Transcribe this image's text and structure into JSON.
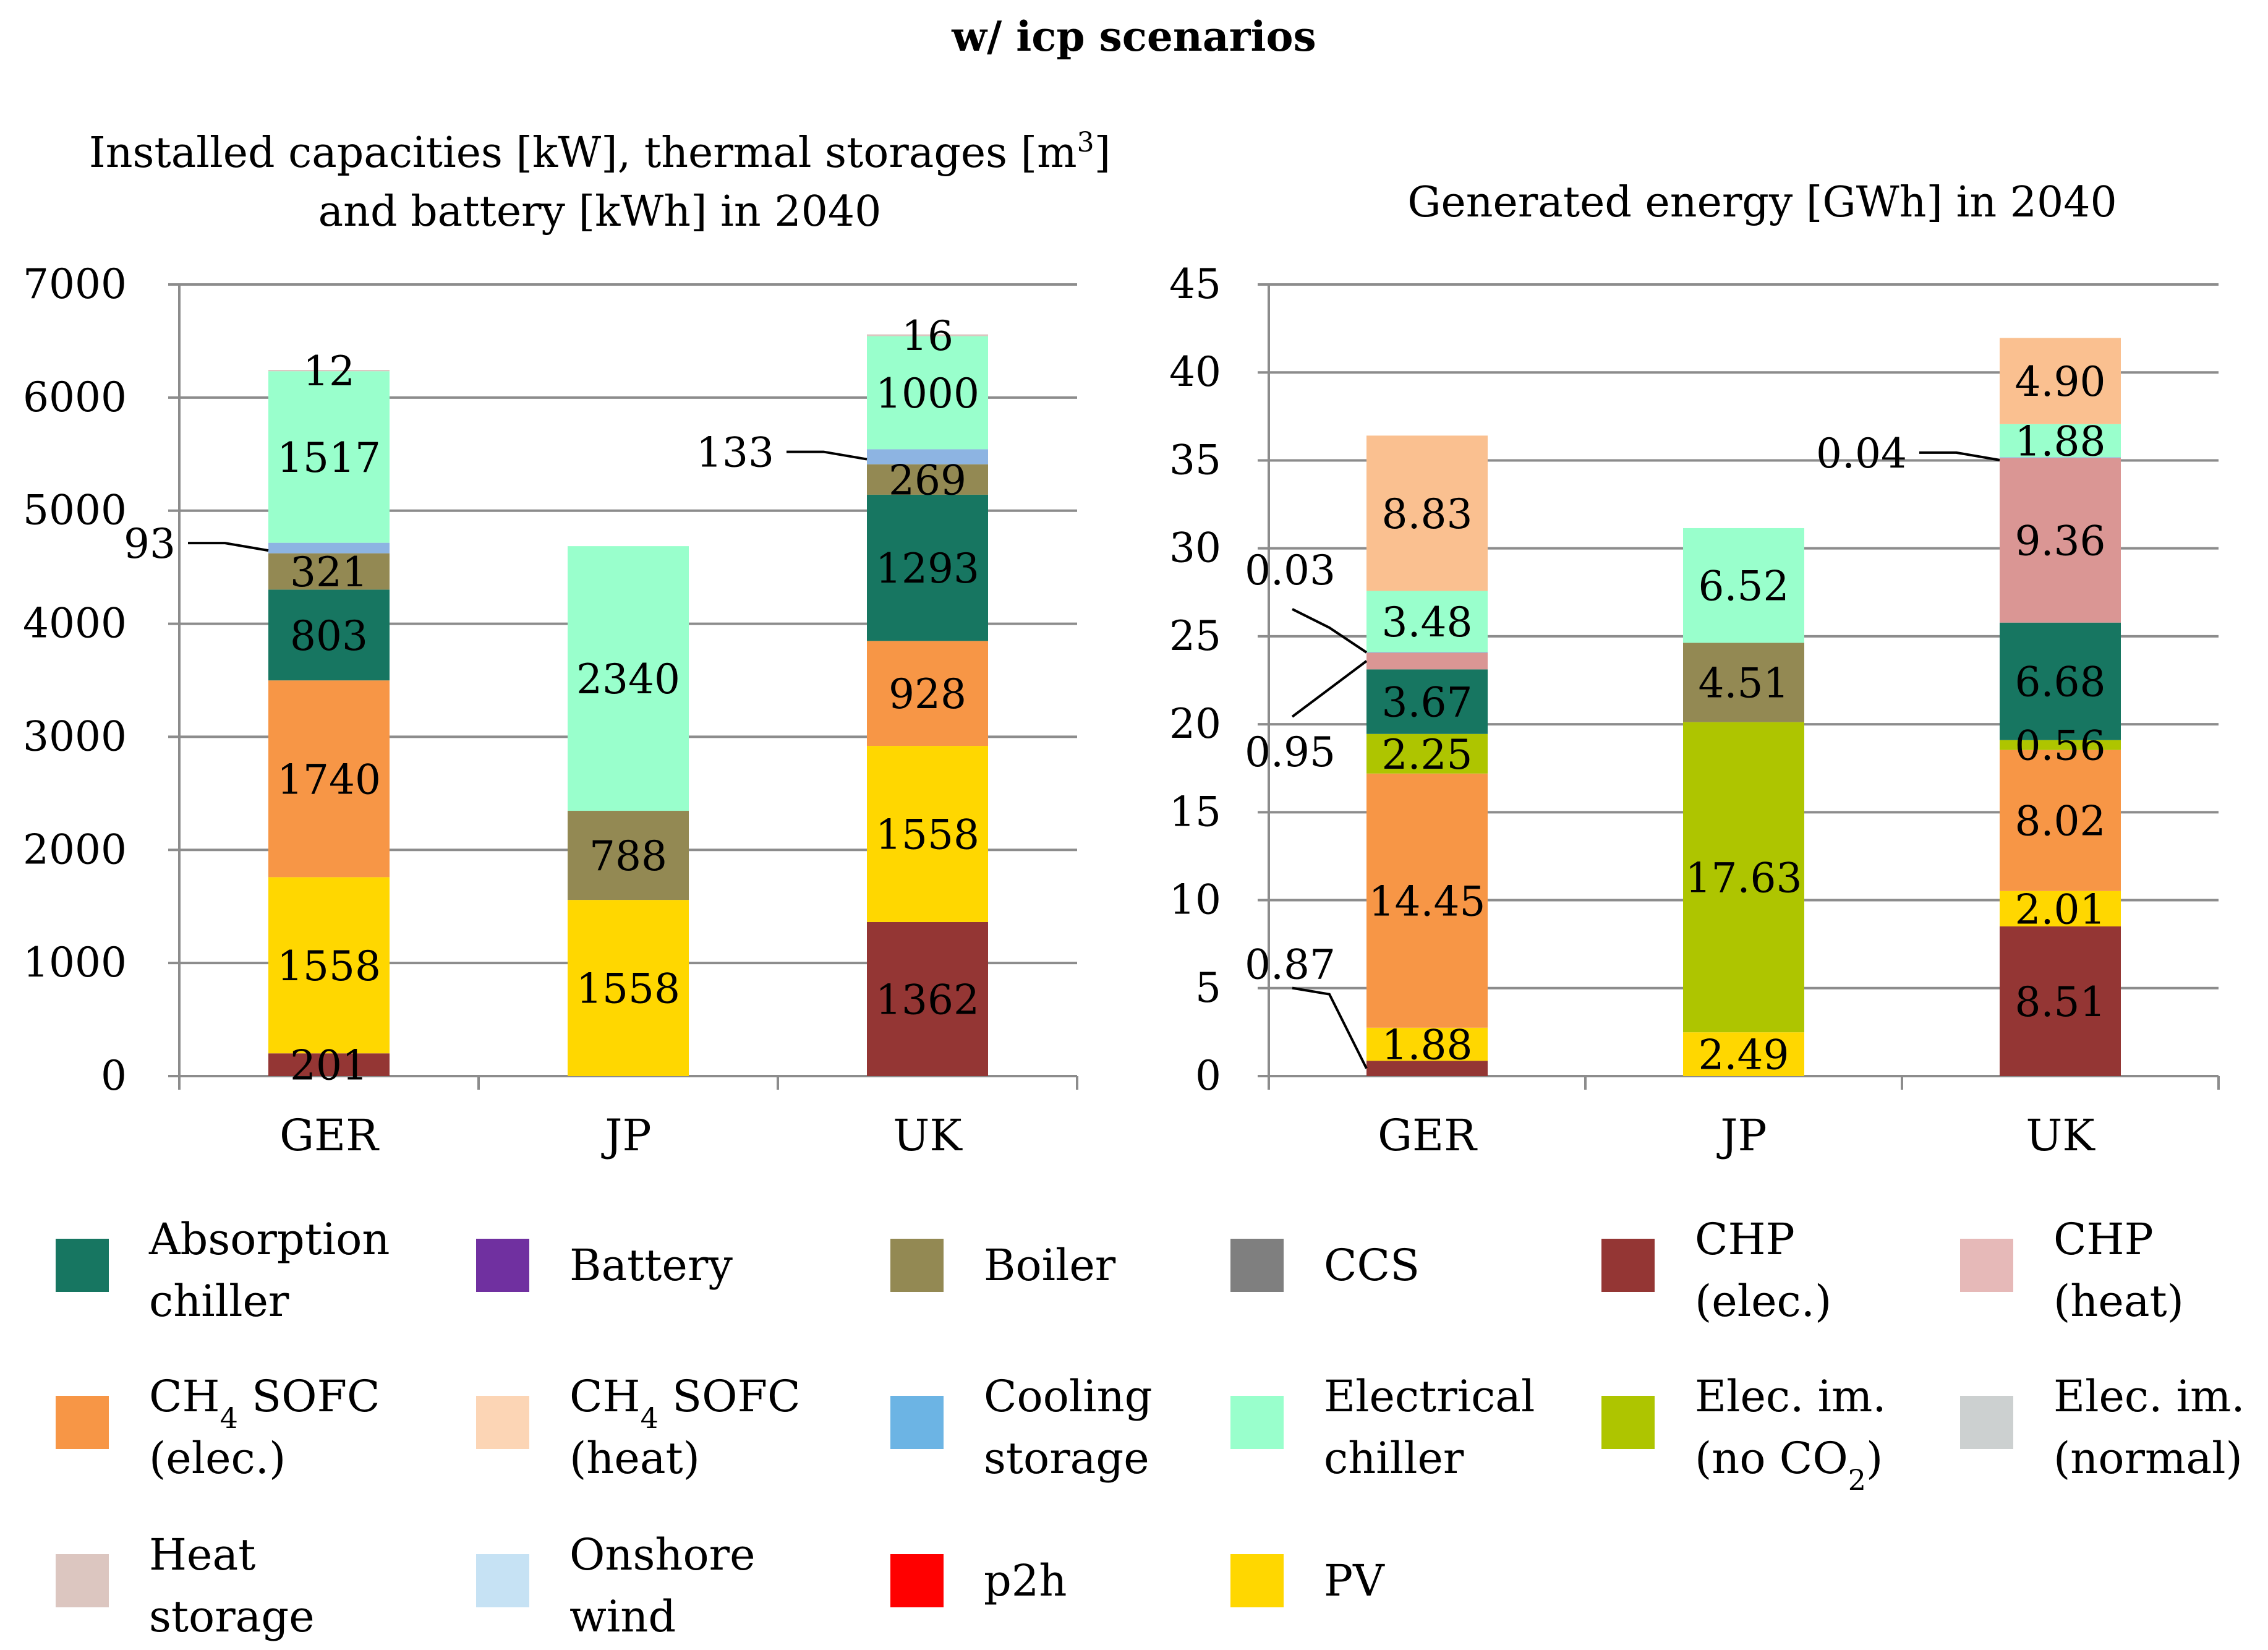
{
  "main_title": "w/ icp scenarios",
  "chart_data": [
    {
      "type": "bar",
      "stacked": true,
      "title_line1_pre": "Installed capacities [kW], thermal storages [m",
      "title_line1_sup": "3",
      "title_line1_post": "]",
      "title_line2": "and battery [kWh] in 2040",
      "categories": [
        "GER",
        "JP",
        "UK"
      ],
      "ylim": [
        0,
        7000
      ],
      "yticks": [
        0,
        1000,
        2000,
        3000,
        4000,
        5000,
        6000,
        7000
      ],
      "grid": true,
      "series": [
        {
          "name": "CHP (elec.)",
          "color": "#943634",
          "values": [
            201,
            0,
            1362
          ]
        },
        {
          "name": "PV",
          "color": "#FFD700",
          "values": [
            1558,
            1558,
            1558
          ]
        },
        {
          "name": "CH4 SOFC (elec.)",
          "color": "#F79646",
          "values": [
            1740,
            0,
            928
          ]
        },
        {
          "name": "Absorption chiller",
          "color": "#177661",
          "values": [
            803,
            0,
            1293
          ]
        },
        {
          "name": "Boiler",
          "color": "#938953",
          "values": [
            321,
            788,
            269
          ]
        },
        {
          "name": "Cooling storage",
          "color": "#8DB4E2",
          "values": [
            93,
            0,
            133
          ]
        },
        {
          "name": "Electrical chiller",
          "color": "#99FFCC",
          "values": [
            1517,
            2340,
            1000
          ]
        },
        {
          "name": "Heat storage",
          "color": "#DCC6C0",
          "values": [
            12,
            0,
            16
          ]
        }
      ],
      "labels": [
        {
          "text": "201",
          "cat": 0,
          "value": 201,
          "series": 0
        },
        {
          "text": "1558",
          "cat": 0,
          "value": 1558,
          "series": 1
        },
        {
          "text": "1740",
          "cat": 0,
          "value": 1740,
          "series": 2
        },
        {
          "text": "803",
          "cat": 0,
          "value": 803,
          "series": 3
        },
        {
          "text": "321",
          "cat": 0,
          "value": 321,
          "series": 4
        },
        {
          "text": "93",
          "cat": 0,
          "value": 93,
          "series": 5,
          "callout": "left"
        },
        {
          "text": "1517",
          "cat": 0,
          "value": 1517,
          "series": 6
        },
        {
          "text": "12",
          "cat": 0,
          "value": 12,
          "series": 7
        },
        {
          "text": "1558",
          "cat": 1,
          "value": 1558,
          "series": 1
        },
        {
          "text": "788",
          "cat": 1,
          "value": 788,
          "series": 4
        },
        {
          "text": "2340",
          "cat": 1,
          "value": 2340,
          "series": 6
        },
        {
          "text": "1362",
          "cat": 2,
          "value": 1362,
          "series": 0
        },
        {
          "text": "1558",
          "cat": 2,
          "value": 1558,
          "series": 1
        },
        {
          "text": "928",
          "cat": 2,
          "value": 928,
          "series": 2
        },
        {
          "text": "1293",
          "cat": 2,
          "value": 1293,
          "series": 3
        },
        {
          "text": "269",
          "cat": 2,
          "value": 269,
          "series": 4
        },
        {
          "text": "133",
          "cat": 2,
          "value": 133,
          "series": 5,
          "callout": "left"
        },
        {
          "text": "1000",
          "cat": 2,
          "value": 1000,
          "series": 6
        },
        {
          "text": "16",
          "cat": 2,
          "value": 16,
          "series": 7
        }
      ]
    },
    {
      "type": "bar",
      "stacked": true,
      "title": "Generated energy [GWh] in 2040",
      "categories": [
        "GER",
        "JP",
        "UK"
      ],
      "ylim": [
        0,
        45
      ],
      "yticks": [
        0,
        5,
        10,
        15,
        20,
        25,
        30,
        35,
        40,
        45
      ],
      "grid": true,
      "series": [
        {
          "name": "CHP (elec.)",
          "color": "#943634",
          "values": [
            0.87,
            0,
            8.51
          ]
        },
        {
          "name": "PV",
          "color": "#FFD700",
          "values": [
            1.88,
            2.49,
            2.01
          ]
        },
        {
          "name": "CH4 SOFC (elec.)",
          "color": "#F79646",
          "values": [
            14.45,
            0,
            8.02
          ]
        },
        {
          "name": "Elec. im. (no CO2)",
          "color": "#AEC500",
          "values": [
            2.25,
            17.63,
            0.56
          ]
        },
        {
          "name": "Absorption chiller",
          "color": "#177661",
          "values": [
            3.67,
            0,
            6.68
          ]
        },
        {
          "name": "Boiler",
          "color": "#938953",
          "values": [
            0,
            4.51,
            0
          ]
        },
        {
          "name": "CHP (heat)",
          "color": "#DA9694",
          "values": [
            0.95,
            0,
            9.36
          ]
        },
        {
          "name": "Cooling storage",
          "color": "#8DB4E2",
          "values": [
            0.03,
            0,
            0.04
          ]
        },
        {
          "name": "Electrical chiller",
          "color": "#99FFCC",
          "values": [
            3.48,
            6.52,
            1.88
          ]
        },
        {
          "name": "CH4 SOFC (heat)",
          "color": "#FAC090",
          "values": [
            8.83,
            0,
            4.9
          ]
        }
      ],
      "labels": [
        {
          "text": "0.87",
          "cat": 0,
          "series": 0,
          "callout": "left-up"
        },
        {
          "text": "1.88",
          "cat": 0,
          "series": 1
        },
        {
          "text": "14.45",
          "cat": 0,
          "series": 2
        },
        {
          "text": "2.25",
          "cat": 0,
          "series": 3
        },
        {
          "text": "3.67",
          "cat": 0,
          "series": 4
        },
        {
          "text": "0.95",
          "cat": 0,
          "series": 6,
          "callout": "left-down"
        },
        {
          "text": "0.03",
          "cat": 0,
          "series": 7,
          "callout": "left-up2"
        },
        {
          "text": "3.48",
          "cat": 0,
          "series": 8
        },
        {
          "text": "8.83",
          "cat": 0,
          "series": 9
        },
        {
          "text": "2.49",
          "cat": 1,
          "series": 1
        },
        {
          "text": "17.63",
          "cat": 1,
          "series": 3
        },
        {
          "text": "4.51",
          "cat": 1,
          "series": 5
        },
        {
          "text": "6.52",
          "cat": 1,
          "series": 8
        },
        {
          "text": "8.51",
          "cat": 2,
          "series": 0
        },
        {
          "text": "2.01",
          "cat": 2,
          "series": 1
        },
        {
          "text": "8.02",
          "cat": 2,
          "series": 2
        },
        {
          "text": "0.56",
          "cat": 2,
          "series": 3
        },
        {
          "text": "6.68",
          "cat": 2,
          "series": 4
        },
        {
          "text": "9.36",
          "cat": 2,
          "series": 6
        },
        {
          "text": "0.04",
          "cat": 2,
          "series": 7,
          "callout": "left"
        },
        {
          "text": "1.88",
          "cat": 2,
          "series": 8
        },
        {
          "text": "4.90",
          "cat": 2,
          "series": 9
        }
      ]
    }
  ],
  "legend": [
    {
      "line1": "Absorption",
      "line2": "chiller",
      "color": "#177661"
    },
    {
      "line1": "Battery",
      "line2": "",
      "color": "#7030A0"
    },
    {
      "line1": "Boiler",
      "line2": "",
      "color": "#938953"
    },
    {
      "line1": "CCS",
      "line2": "",
      "color": "#7F7F7F"
    },
    {
      "line1": "CHP",
      "line2": "(elec.)",
      "color": "#943634"
    },
    {
      "line1": "CHP",
      "line2": "(heat)",
      "color": "#E6B9B8"
    },
    {
      "line1": "CH4 SOFC",
      "line2": "(elec.)",
      "color": "#F79646",
      "sub": true
    },
    {
      "line1": "CH4 SOFC",
      "line2": "(heat)",
      "color": "#FCD5B5",
      "sub": true
    },
    {
      "line1": "Cooling",
      "line2": "storage",
      "color": "#6CB4E4"
    },
    {
      "line1": "Electrical",
      "line2": "chiller",
      "color": "#99FFCC"
    },
    {
      "line1": "Elec. im.",
      "line2": "(no CO2)",
      "color": "#AEC500",
      "sub2": true
    },
    {
      "line1": "Elec. im.",
      "line2": "(normal)",
      "color": "#CCD0D0"
    },
    {
      "line1": "Heat",
      "line2": "storage",
      "color": "#DCC6C0"
    },
    {
      "line1": "Onshore",
      "line2": "wind",
      "color": "#C6E2F4"
    },
    {
      "line1": "p2h",
      "line2": "",
      "color": "#FF0000"
    },
    {
      "line1": "PV",
      "line2": "",
      "color": "#FFD700"
    }
  ]
}
